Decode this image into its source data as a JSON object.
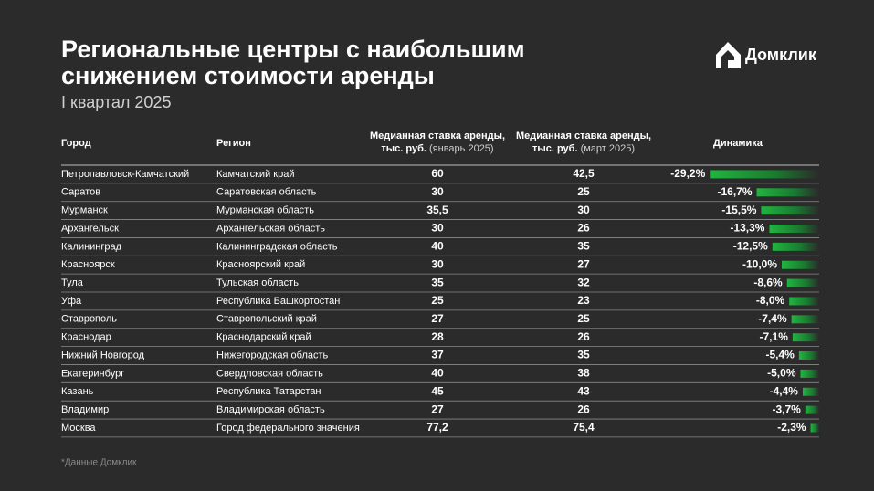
{
  "header": {
    "title_lines": [
      "Региональные центры с наибольшим",
      "снижением стоимости аренды"
    ],
    "subtitle": "I квартал 2025",
    "logo": "Домклик"
  },
  "table": {
    "columns": [
      "Город",
      "Регион",
      {
        "line1": "Медианная ставка аренды,",
        "line2": "тыс. руб.",
        "note": "(январь 2025)"
      },
      {
        "line1": "Медианная ставка аренды,",
        "line2": "тыс. руб.",
        "note": "(март 2025)"
      },
      "Динамика"
    ],
    "rows": [
      [
        "Петропавловск-Камчатский",
        "Камчатский край",
        "60",
        "42,5"
      ],
      [
        "Саратов",
        "Саратовская область",
        "30",
        "25"
      ],
      [
        "Мурманск",
        "Мурманская область",
        "35,5",
        "30"
      ],
      [
        "Архангельск",
        "Архангельская область",
        "30",
        "26"
      ],
      [
        "Калининград",
        "Калининградская область",
        "40",
        "35"
      ],
      [
        "Красноярск",
        "Красноярский край",
        "30",
        "27"
      ],
      [
        "Тула",
        "Тульская область",
        "35",
        "32"
      ],
      [
        "Уфа",
        "Республика Башкортостан",
        "25",
        "23"
      ],
      [
        "Ставрополь",
        "Ставропольский край",
        "27",
        "25"
      ],
      [
        "Краснодар",
        "Краснодарский край",
        "28",
        "26"
      ],
      [
        "Нижний Новгород",
        "Нижегородская область",
        "37",
        "35"
      ],
      [
        "Екатеринбург",
        "Свердловская область",
        "40",
        "38"
      ],
      [
        "Казань",
        "Республика Татарстан",
        "45",
        "43"
      ],
      [
        "Владимир",
        "Владимирская область",
        "27",
        "26"
      ],
      [
        "Москва",
        "Город федерального значения",
        "77,2",
        "75,4"
      ]
    ],
    "dynamics": {
      "values": [
        -29.2,
        -16.7,
        -15.5,
        -13.3,
        -12.5,
        -10.0,
        -8.6,
        -8.0,
        -7.4,
        -7.1,
        -5.4,
        -5.0,
        -4.4,
        -3.7,
        -2.3
      ],
      "value_labels": [
        "-29,2%",
        "-16,7%",
        "-15,5%",
        "-13,3%",
        "-12,5%",
        "-10,0%",
        "-8,6%",
        "-8,0%",
        "-7,4%",
        "-7,1%",
        "-5,4%",
        "-5,0%",
        "-4,4%",
        "-3,7%",
        "-2,3%"
      ]
    }
  },
  "footnote": "*Данные Домклик"
}
